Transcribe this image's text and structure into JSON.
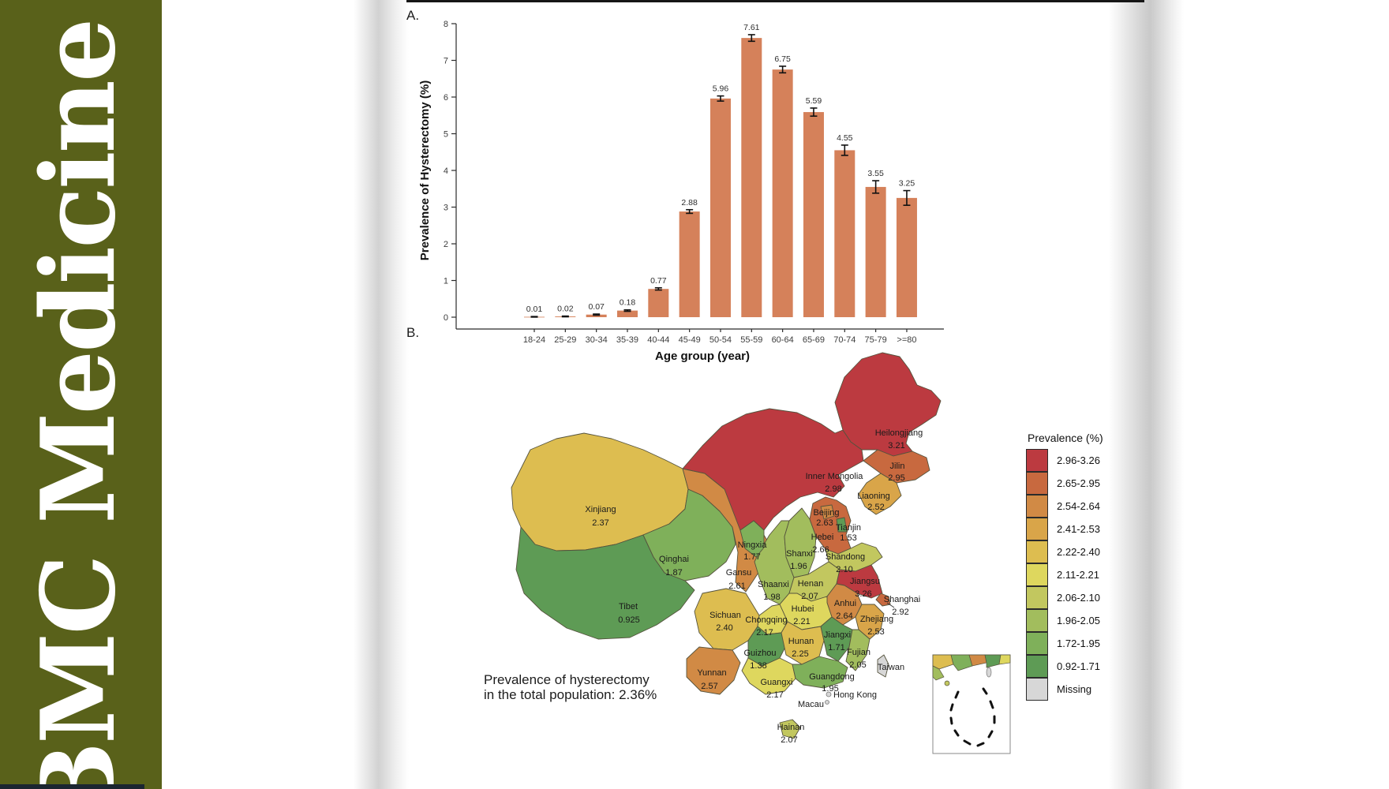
{
  "sidebar": {
    "journal_title": "BMC Medicine"
  },
  "page": {
    "panel_a_label": "A.",
    "panel_b_label": "B."
  },
  "chart_data": [
    {
      "type": "bar",
      "panel": "A",
      "ylabel": "Prevalence of Hysterectomy (%)",
      "xlabel": "Age group (year)",
      "ylim": [
        0,
        8
      ],
      "yticks": [
        0,
        1,
        2,
        3,
        4,
        5,
        6,
        7,
        8
      ],
      "grid": false,
      "bar_color": "#d5815a",
      "categories": [
        "18-24",
        "25-29",
        "30-34",
        "35-39",
        "40-44",
        "45-49",
        "50-54",
        "55-59",
        "60-64",
        "65-69",
        "70-74",
        "75-79",
        ">=80"
      ],
      "values": [
        0.01,
        0.02,
        0.07,
        0.18,
        0.77,
        2.88,
        5.96,
        7.61,
        6.75,
        5.59,
        4.55,
        3.55,
        3.25
      ],
      "value_labels": [
        "0.01",
        "0.02",
        "0.07",
        "0.18",
        "0.77",
        "2.88",
        "5.96",
        "7.61",
        "6.75",
        "5.59",
        "4.55",
        "3.55",
        "3.25"
      ],
      "errors": [
        0.008,
        0.01,
        0.015,
        0.02,
        0.03,
        0.05,
        0.07,
        0.09,
        0.09,
        0.11,
        0.14,
        0.17,
        0.2
      ]
    },
    {
      "type": "choropleth",
      "panel": "B",
      "annotation_lines": [
        "Prevalence of hysterectomy",
        "in the total population: 2.36%"
      ],
      "legend_title": "Prevalence (%)",
      "legend": [
        {
          "range": "2.96-3.26",
          "color": "#bc3a40"
        },
        {
          "range": "2.65-2.95",
          "color": "#c8693f"
        },
        {
          "range": "2.54-2.64",
          "color": "#d18a45"
        },
        {
          "range": "2.41-2.53",
          "color": "#d9a549"
        },
        {
          "range": "2.22-2.40",
          "color": "#ddbd50"
        },
        {
          "range": "2.11-2.21",
          "color": "#ded75e"
        },
        {
          "range": "2.06-2.10",
          "color": "#c2c75f"
        },
        {
          "range": "1.96-2.05",
          "color": "#a2bd5d"
        },
        {
          "range": "1.72-1.95",
          "color": "#7fb05a"
        },
        {
          "range": "0.92-1.71",
          "color": "#5e9b55"
        },
        {
          "range": "Missing",
          "color": "#d7d7d7"
        }
      ],
      "regions": [
        {
          "name": "Xinjiang",
          "value": "2.37"
        },
        {
          "name": "Tibet",
          "value": "0.925"
        },
        {
          "name": "Qinghai",
          "value": "1.87"
        },
        {
          "name": "Gansu",
          "value": "2.61"
        },
        {
          "name": "Inner Mongolia",
          "value": "2.98"
        },
        {
          "name": "Heilongjiang",
          "value": "3.21"
        },
        {
          "name": "Jilin",
          "value": "2.95"
        },
        {
          "name": "Liaoning",
          "value": "2.52"
        },
        {
          "name": "Sichuan",
          "value": "2.40"
        },
        {
          "name": "Yunnan",
          "value": "2.57"
        },
        {
          "name": "Shaanxi",
          "value": "1.98"
        },
        {
          "name": "Shanxi",
          "value": "1.96"
        },
        {
          "name": "Ningxia",
          "value": "1.77"
        },
        {
          "name": "Hebei",
          "value": "2.66"
        },
        {
          "name": "Beijing",
          "value": "2.63"
        },
        {
          "name": "Tianjin",
          "value": "1.53"
        },
        {
          "name": "Shandong",
          "value": "2.10"
        },
        {
          "name": "Henan",
          "value": "2.07"
        },
        {
          "name": "Jiangsu",
          "value": "3.26"
        },
        {
          "name": "Shanghai",
          "value": "2.92"
        },
        {
          "name": "Anhui",
          "value": "2.64"
        },
        {
          "name": "Hubei",
          "value": "2.21"
        },
        {
          "name": "Chongqing",
          "value": "2.17"
        },
        {
          "name": "Guizhou",
          "value": "1.38"
        },
        {
          "name": "Hunan",
          "value": "2.25"
        },
        {
          "name": "Jiangxi",
          "value": "1.71"
        },
        {
          "name": "Zhejiang",
          "value": "2.53"
        },
        {
          "name": "Fujian",
          "value": "2.05"
        },
        {
          "name": "Guangxi",
          "value": "2.17"
        },
        {
          "name": "Guangdong",
          "value": "1.95"
        },
        {
          "name": "Hainan",
          "value": "2.07"
        },
        {
          "name": "Taiwan",
          "value": "Missing"
        },
        {
          "name": "Hong Kong",
          "value": "Missing"
        },
        {
          "name": "Macau",
          "value": "Missing"
        }
      ]
    }
  ]
}
